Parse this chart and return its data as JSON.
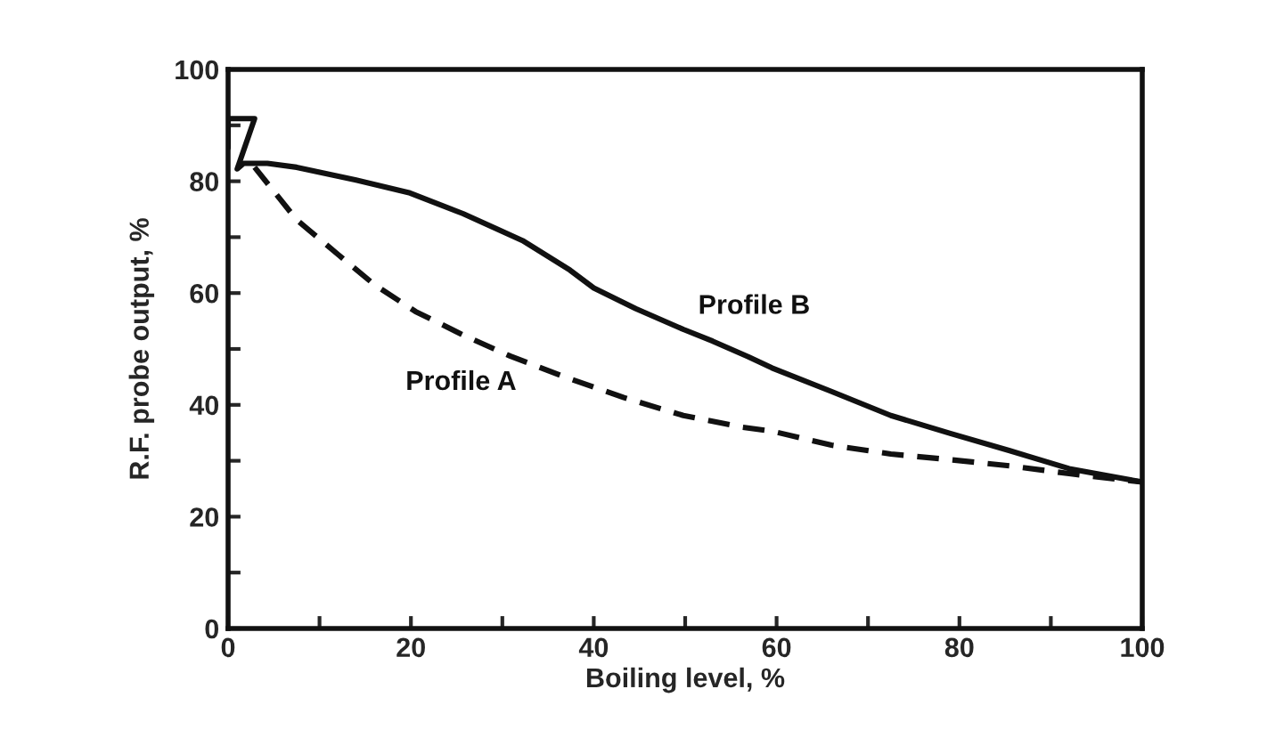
{
  "chart_data": {
    "type": "line",
    "xlabel": "Boiling level, %",
    "ylabel": "R.F. probe output, %",
    "xlim": [
      0,
      100
    ],
    "ylim": [
      0,
      100
    ],
    "xticks": [
      0,
      {
        "value": 10,
        "label": null
      },
      20,
      {
        "value": 30,
        "label": null
      },
      40,
      {
        "value": 50,
        "label": null
      },
      60,
      {
        "value": 70,
        "label": null
      },
      80,
      {
        "value": 90,
        "label": null
      },
      100
    ],
    "yticks": [
      0,
      {
        "value": 10,
        "label": null
      },
      20,
      {
        "value": 30,
        "label": null
      },
      40,
      {
        "value": 50,
        "label": null
      },
      60,
      {
        "value": 70,
        "label": null
      },
      80,
      {
        "value": 90,
        "label": null
      },
      100
    ],
    "grid": false,
    "legend": false,
    "marker": "none",
    "series": [
      {
        "name": "Profile B",
        "color": "#111111",
        "line_style": "solid",
        "x": [
          0,
          0,
          2.9,
          1.0,
          1.7,
          4.3,
          7.5,
          14,
          19.9,
          25.7,
          32.2,
          37.4,
          40,
          44.6,
          49.8,
          53,
          56.9,
          59.5,
          66,
          72.5,
          79,
          85.5,
          92,
          100
        ],
        "values": [
          86,
          91.2,
          91.2,
          82.2,
          83.2,
          83.2,
          82.5,
          80.2,
          77.9,
          74.2,
          69.4,
          64.1,
          60.9,
          57.2,
          53.5,
          51.4,
          48.6,
          46.6,
          42.4,
          38.1,
          34.9,
          31.8,
          28.6,
          26.2
        ]
      },
      {
        "name": "Profile A",
        "color": "#111111",
        "line_style": "dashed",
        "x": [
          2.9,
          7.5,
          12.1,
          16,
          20.5,
          25.7,
          30.9,
          36.8,
          43.3,
          49.8,
          56.3,
          59.5,
          66,
          72.5,
          79,
          85.5,
          92,
          100
        ],
        "values": [
          82.5,
          73.1,
          66.8,
          61.5,
          56.7,
          52.5,
          48.7,
          45,
          41.3,
          38.1,
          36,
          35.3,
          32.8,
          31.2,
          30.2,
          29.1,
          27.7,
          26.2
        ]
      }
    ]
  }
}
